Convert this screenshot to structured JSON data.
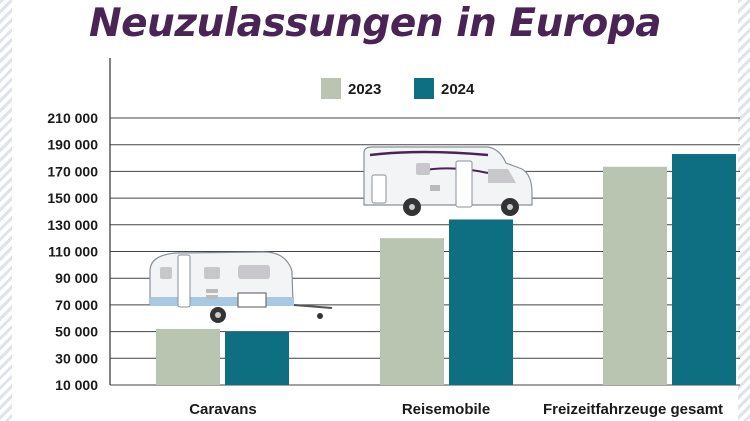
{
  "title": "Neuzulassungen in Europa",
  "colors": {
    "2023": "#b9c5b1",
    "2024": "#0e6e82",
    "title": "#4a2454"
  },
  "chart_data": {
    "type": "bar",
    "title": "Neuzulassungen in Europa",
    "xlabel": "",
    "ylabel": "",
    "categories": [
      "Caravans",
      "Reisemobile",
      "Freizeitfahrzeuge gesamt"
    ],
    "series": [
      {
        "name": "2023",
        "values": [
          52000,
          120000,
          173500
        ]
      },
      {
        "name": "2024",
        "values": [
          50000,
          134000,
          183000
        ]
      }
    ],
    "ylim": [
      10000,
      210000
    ],
    "yticks": [
      10000,
      30000,
      50000,
      70000,
      90000,
      110000,
      130000,
      150000,
      170000,
      190000,
      210000
    ],
    "ytick_labels": [
      "10 000",
      "30 000",
      "50 000",
      "70 000",
      "90 000",
      "110 000",
      "130 000",
      "150 000",
      "170 000",
      "190 000",
      "210 000"
    ],
    "grid": true,
    "legend_position": "top-center",
    "illustrations": [
      "caravan-icon",
      "motorhome-icon"
    ]
  }
}
